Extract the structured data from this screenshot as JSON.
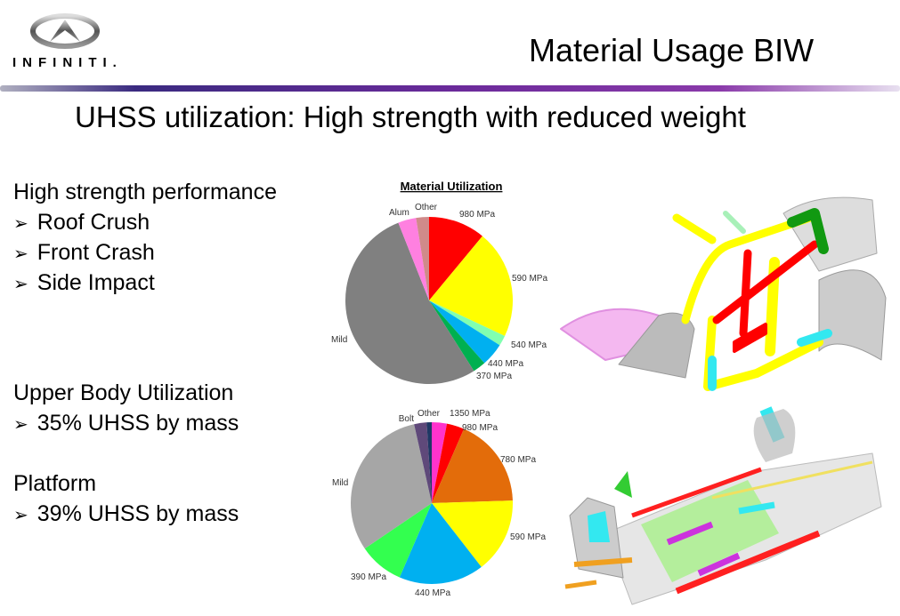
{
  "header": {
    "logo_text": "INFINITI.",
    "title": "Material Usage BIW"
  },
  "subtitle": "UHSS utilization: High strength with reduced weight",
  "bullets": {
    "group1_heading": "High strength performance",
    "group1_items": [
      "Roof Crush",
      "Front Crash",
      "Side Impact"
    ],
    "group2_heading": "Upper Body Utilization",
    "group2_items": [
      "35% UHSS by mass"
    ],
    "group3_heading": "Platform",
    "group3_items": [
      "39% UHSS by mass"
    ],
    "bullet_glyph": "➢"
  },
  "chart_data": [
    {
      "type": "pie",
      "title": "Material Utilization",
      "labels": [
        "980 MPa",
        "590 MPa",
        "540 MPa",
        "440 MPa",
        "370 MPa",
        "Mild",
        "Alum",
        "Other"
      ],
      "values": [
        11,
        21,
        2,
        4.5,
        2.5,
        53,
        3.5,
        2.5
      ],
      "colors": [
        "#ff0000",
        "#ffff00",
        "#80ffb0",
        "#00b0f0",
        "#00b050",
        "#808080",
        "#ff80e0",
        "#d08a8a"
      ],
      "start": "12 o'clock, clockwise"
    },
    {
      "type": "pie",
      "title": "",
      "labels": [
        "1350 MPa",
        "980 MPa",
        "780 MPa",
        "590 MPa",
        "440 MPa",
        "390 MPa",
        "Mild",
        "Bolt",
        "Other"
      ],
      "values": [
        3,
        3.5,
        18,
        15,
        17,
        9,
        31,
        2.5,
        1
      ],
      "colors": [
        "#ff33cc",
        "#ff0000",
        "#e36c0a",
        "#ffff00",
        "#00b0f0",
        "#33ff4f",
        "#a6a6a6",
        "#5f497a",
        "#1f3864"
      ],
      "start": "12 o'clock, clockwise"
    }
  ]
}
